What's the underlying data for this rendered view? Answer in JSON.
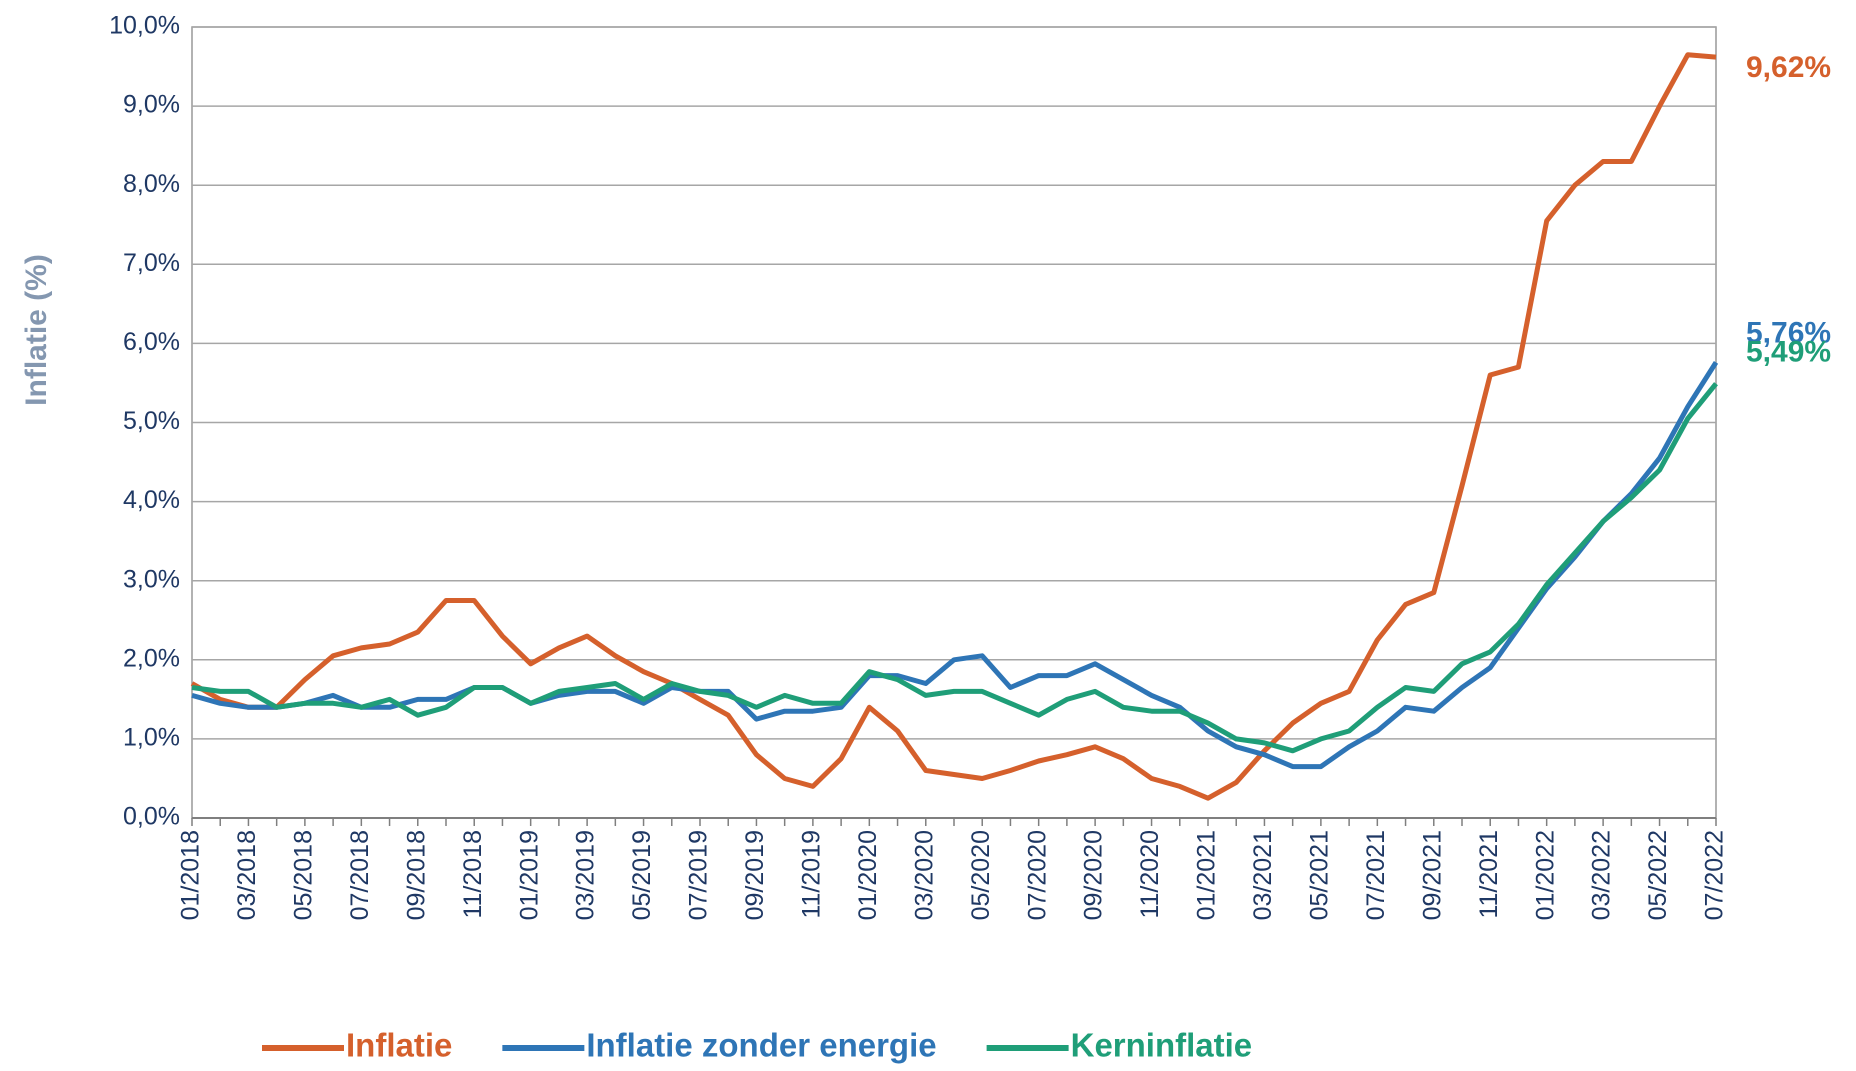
{
  "chart_data": {
    "type": "line",
    "y_label": "Inflatie (%)",
    "categories": [
      "01/2018",
      null,
      "03/2018",
      null,
      "05/2018",
      null,
      "07/2018",
      null,
      "09/2018",
      null,
      "11/2018",
      null,
      "01/2019",
      null,
      "03/2019",
      null,
      "05/2019",
      null,
      "07/2019",
      null,
      "09/2019",
      null,
      "11/2019",
      null,
      "01/2020",
      null,
      "03/2020",
      null,
      "05/2020",
      null,
      "07/2020",
      null,
      "09/2020",
      null,
      "11/2020",
      null,
      "01/2021",
      null,
      "03/2021",
      null,
      "05/2021",
      null,
      "07/2021",
      null,
      "09/2021",
      null,
      "11/2021",
      null,
      "01/2022",
      null,
      "03/2022",
      null,
      "05/2022",
      null,
      "07/2022"
    ],
    "series": [
      {
        "name": "Inflatie",
        "color": "#d5602c",
        "values": [
          1.7,
          1.5,
          1.4,
          1.4,
          1.75,
          2.05,
          2.15,
          2.2,
          2.35,
          2.75,
          2.75,
          2.3,
          1.95,
          2.15,
          2.3,
          2.05,
          1.85,
          1.7,
          1.5,
          1.3,
          0.8,
          0.5,
          0.4,
          0.75,
          1.4,
          1.1,
          0.6,
          0.55,
          0.5,
          0.6,
          0.72,
          0.8,
          0.9,
          0.75,
          0.5,
          0.4,
          0.25,
          0.45,
          0.85,
          1.2,
          1.45,
          1.6,
          2.25,
          2.7,
          2.85,
          4.2,
          5.6,
          5.7,
          7.55,
          8.0,
          8.3,
          8.3,
          9.0,
          9.65,
          9.62
        ],
        "value_labels": [
          null,
          null,
          null,
          null,
          null,
          null,
          null,
          null,
          null,
          null,
          null,
          null,
          null,
          null,
          null,
          null,
          null,
          null,
          null,
          null,
          null,
          null,
          null,
          null,
          null,
          null,
          null,
          null,
          null,
          null,
          null,
          null,
          null,
          null,
          null,
          null,
          null,
          null,
          null,
          null,
          null,
          null,
          null,
          null,
          null,
          null,
          null,
          null,
          null,
          null,
          null,
          null,
          null,
          null,
          "9,62%"
        ]
      },
      {
        "name": "Inflatie zonder energie",
        "color": "#2e75b6",
        "values": [
          1.55,
          1.45,
          1.4,
          1.4,
          1.45,
          1.55,
          1.4,
          1.4,
          1.5,
          1.5,
          1.65,
          1.65,
          1.45,
          1.55,
          1.6,
          1.6,
          1.45,
          1.65,
          1.6,
          1.6,
          1.25,
          1.35,
          1.35,
          1.4,
          1.8,
          1.8,
          1.7,
          2.0,
          2.05,
          1.65,
          1.8,
          1.8,
          1.95,
          1.75,
          1.55,
          1.4,
          1.1,
          0.9,
          0.8,
          0.65,
          0.65,
          0.9,
          1.1,
          1.4,
          1.35,
          1.65,
          1.9,
          2.4,
          2.9,
          3.3,
          3.75,
          4.1,
          4.55,
          5.2,
          5.76
        ],
        "value_labels": [
          null,
          null,
          null,
          null,
          null,
          null,
          null,
          null,
          null,
          null,
          null,
          null,
          null,
          null,
          null,
          null,
          null,
          null,
          null,
          null,
          null,
          null,
          null,
          null,
          null,
          null,
          null,
          null,
          null,
          null,
          null,
          null,
          null,
          null,
          null,
          null,
          null,
          null,
          null,
          null,
          null,
          null,
          null,
          null,
          null,
          null,
          null,
          null,
          null,
          null,
          null,
          null,
          null,
          null,
          "5,76%"
        ]
      },
      {
        "name": "Kerninflatie",
        "color": "#1f9e78",
        "values": [
          1.65,
          1.6,
          1.6,
          1.4,
          1.45,
          1.45,
          1.4,
          1.5,
          1.3,
          1.4,
          1.65,
          1.65,
          1.45,
          1.6,
          1.65,
          1.7,
          1.5,
          1.7,
          1.6,
          1.55,
          1.4,
          1.55,
          1.45,
          1.45,
          1.85,
          1.75,
          1.55,
          1.6,
          1.6,
          1.45,
          1.3,
          1.5,
          1.6,
          1.4,
          1.35,
          1.35,
          1.2,
          1.0,
          0.95,
          0.85,
          1.0,
          1.1,
          1.4,
          1.65,
          1.6,
          1.95,
          2.1,
          2.45,
          2.95,
          3.35,
          3.75,
          4.05,
          4.4,
          5.05,
          5.49
        ],
        "value_labels": [
          null,
          null,
          null,
          null,
          null,
          null,
          null,
          null,
          null,
          null,
          null,
          null,
          null,
          null,
          null,
          null,
          null,
          null,
          null,
          null,
          null,
          null,
          null,
          null,
          null,
          null,
          null,
          null,
          null,
          null,
          null,
          null,
          null,
          null,
          null,
          null,
          null,
          null,
          null,
          null,
          null,
          null,
          null,
          null,
          null,
          null,
          null,
          null,
          null,
          null,
          null,
          null,
          null,
          null,
          "5,49%"
        ]
      }
    ],
    "ylim": [
      0,
      10
    ],
    "yticks": [
      {
        "value": 0,
        "label": "0,0%"
      },
      {
        "value": 1,
        "label": "1,0%"
      },
      {
        "value": 2,
        "label": "2,0%"
      },
      {
        "value": 3,
        "label": "3,0%"
      },
      {
        "value": 4,
        "label": "4,0%"
      },
      {
        "value": 5,
        "label": "5,0%"
      },
      {
        "value": 6,
        "label": "6,0%"
      },
      {
        "value": 7,
        "label": "7,0%"
      },
      {
        "value": 8,
        "label": "8,0%"
      },
      {
        "value": 9,
        "label": "9,0%"
      },
      {
        "value": 10,
        "label": "10,0%"
      }
    ],
    "grid": true,
    "legend": "bottom"
  }
}
